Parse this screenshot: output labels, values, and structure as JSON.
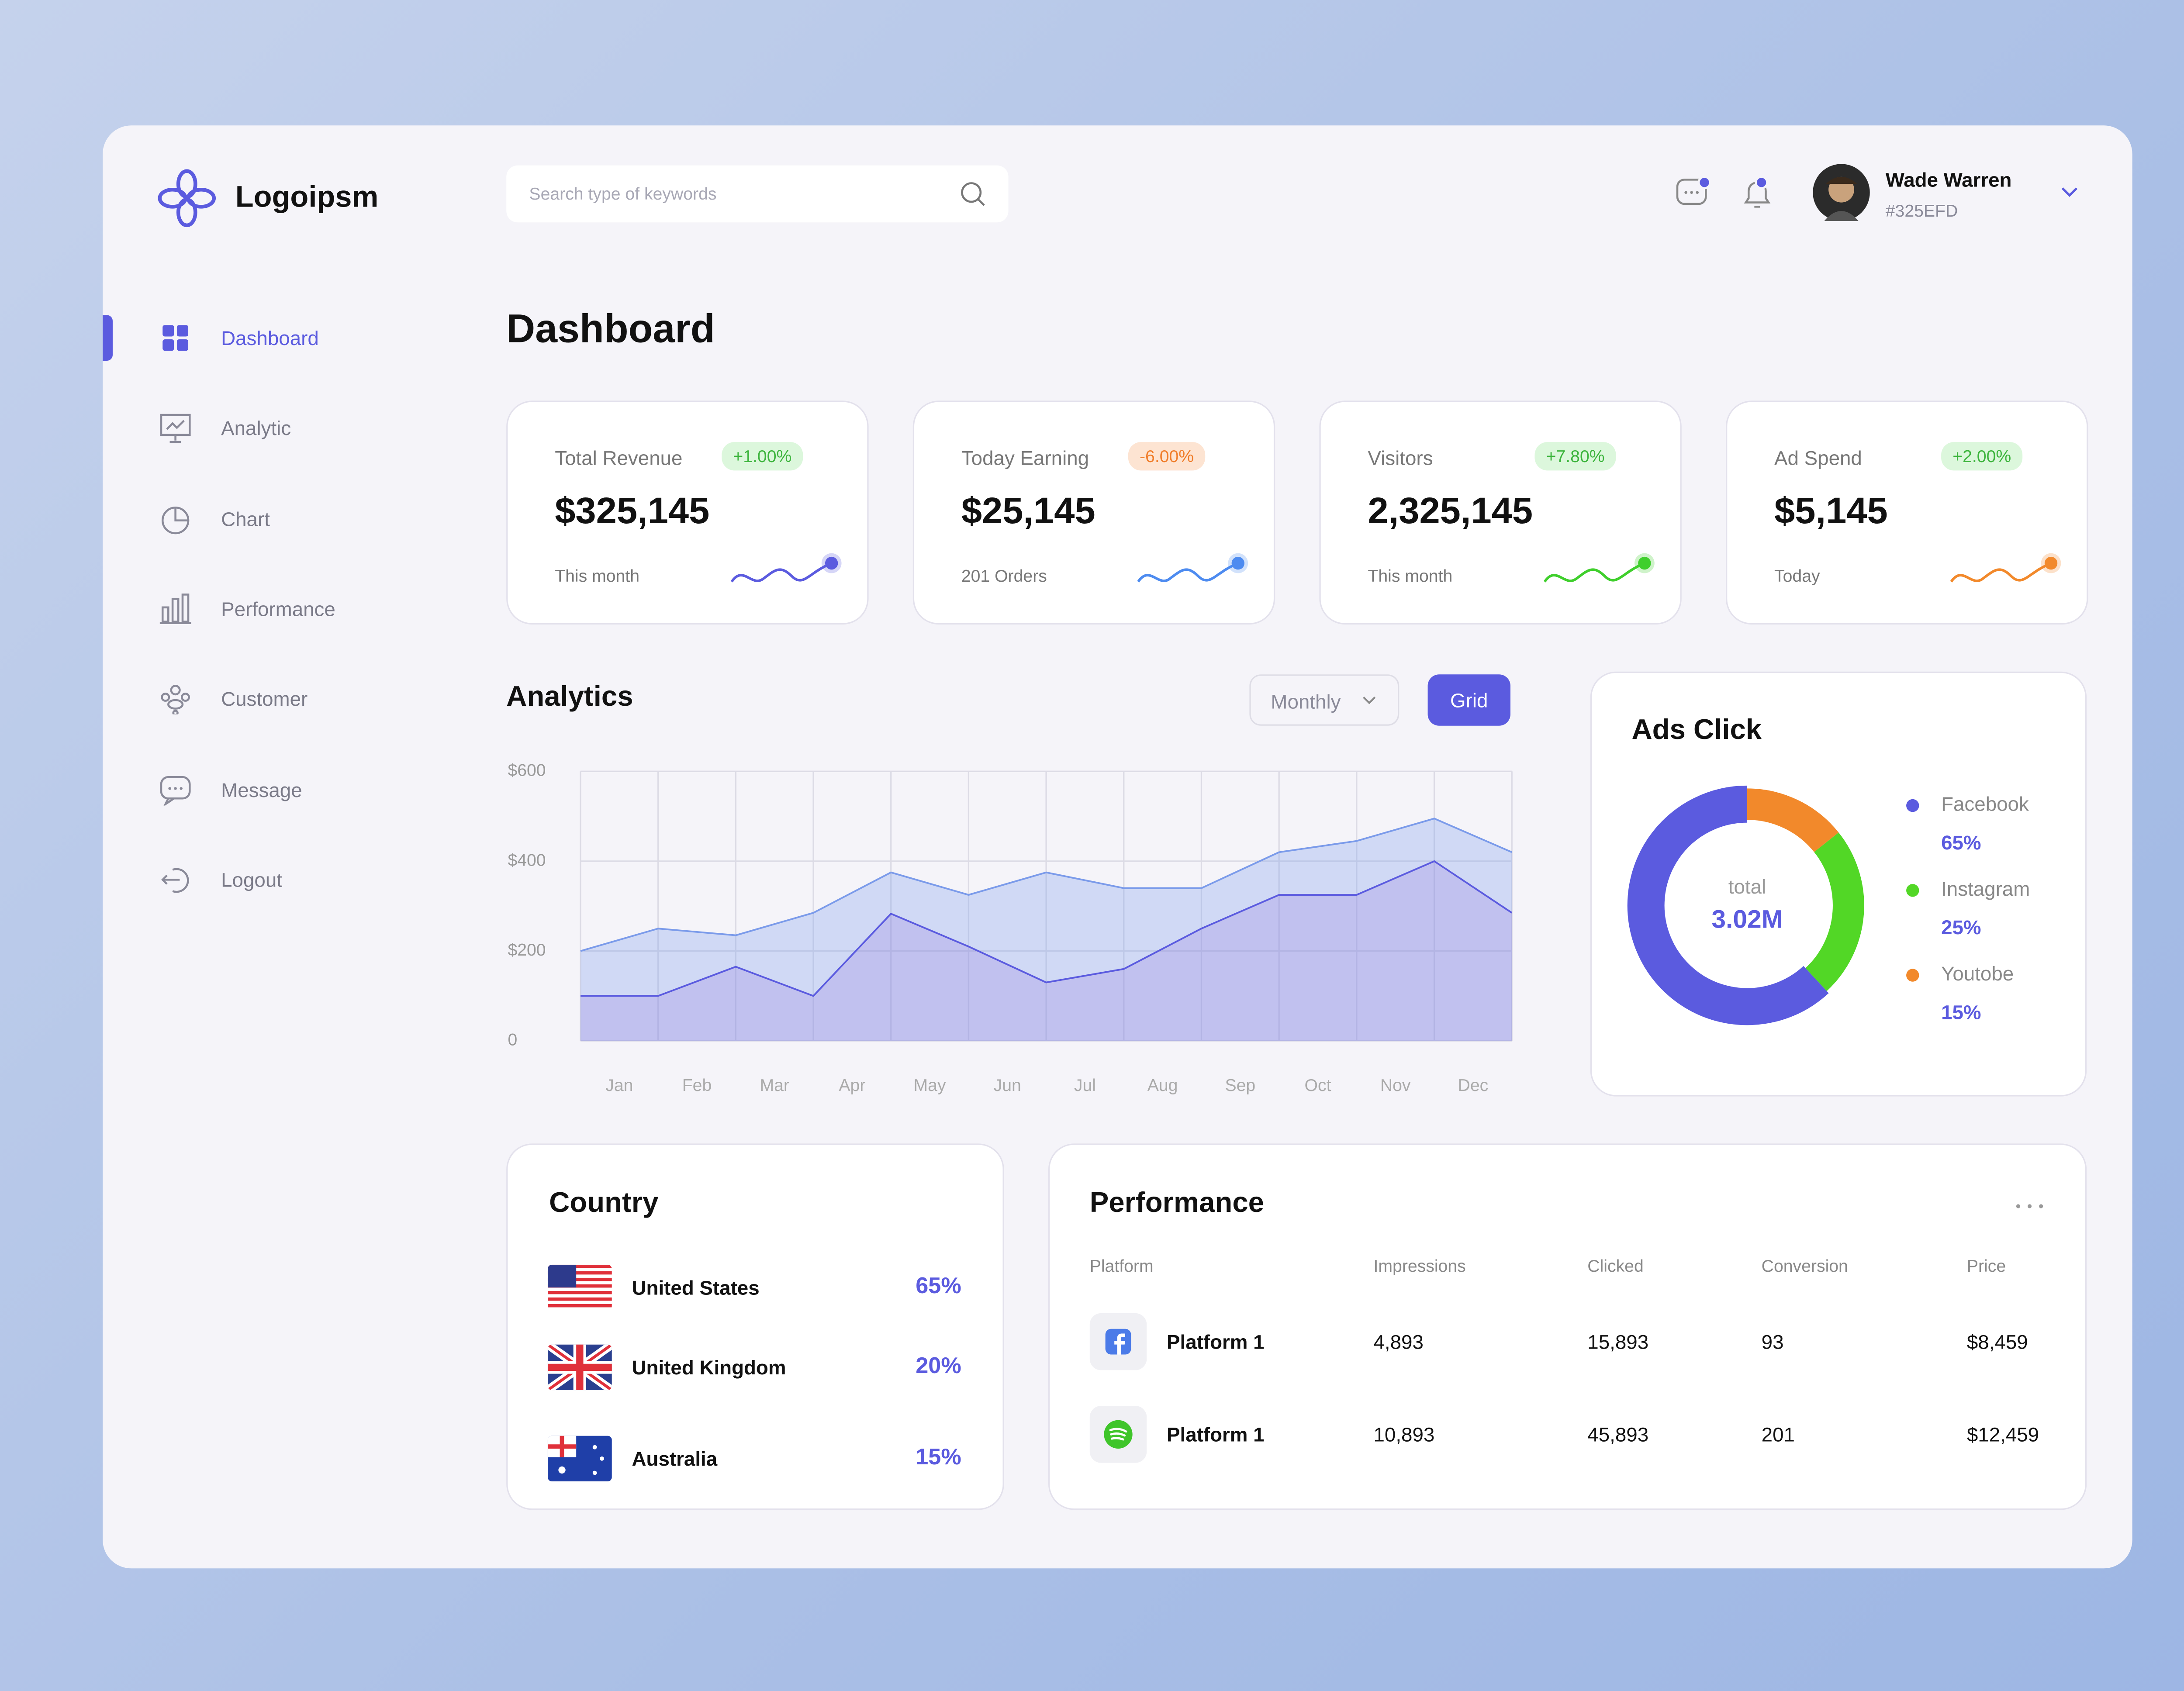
{
  "brand": "Logoipsm",
  "search_placeholder": "Search type of keywords",
  "user": {
    "name": "Wade Warren",
    "id": "#325EFD"
  },
  "nav": [
    "Dashboard",
    "Analytic",
    "Chart",
    "Performance",
    "Customer",
    "Message",
    "Logout"
  ],
  "page_title": "Dashboard",
  "stats": [
    {
      "label": "Total Revenue",
      "badge": "+1.00%",
      "value": "$325,145",
      "note": "This month"
    },
    {
      "label": "Today Earning",
      "badge": "-6.00%",
      "value": "$25,145",
      "note": "201 Orders"
    },
    {
      "label": "Visitors",
      "badge": "+7.80%",
      "value": "2,325,145",
      "note": "This month"
    },
    {
      "label": "Ad Spend",
      "badge": "+2.00%",
      "value": "$5,145",
      "note": "Today"
    }
  ],
  "analytics_controls": {
    "filter": "Monthly",
    "button": "Grid"
  },
  "chart_data": [
    {
      "type": "area",
      "title": "Analytics",
      "categories": [
        "Jan",
        "Feb",
        "Mar",
        "Apr",
        "May",
        "Jun",
        "Jul",
        "Aug",
        "Sep",
        "Oct",
        "Nov",
        "Dec",
        null
      ],
      "series": [
        {
          "color": "#7b9bea",
          "values": [
            200,
            250,
            235,
            285,
            375,
            325,
            375,
            340,
            340,
            420,
            445,
            495,
            420
          ]
        },
        {
          "color": "#5b5bdf",
          "values": [
            100,
            100,
            165,
            100,
            283,
            210,
            130,
            160,
            250,
            325,
            325,
            400,
            285
          ]
        }
      ],
      "ylim": [
        0,
        600
      ],
      "yticks": [
        0,
        {
          "value": 200,
          "label": "$200"
        },
        {
          "value": 400,
          "label": "$400"
        },
        {
          "value": 600,
          "label": "$600"
        }
      ],
      "grid": true
    },
    {
      "type": "donut",
      "title": "Ads Click",
      "center_label": "total",
      "total": "3.02M",
      "categories": [
        "Facebook",
        "Instagram",
        "Youtobe"
      ],
      "values": [
        65,
        25,
        15
      ],
      "value_labels": [
        "65%",
        "25%",
        "15%"
      ],
      "colors": [
        "#5b5bdf",
        "#52d726",
        "#f2892b"
      ]
    }
  ],
  "country": {
    "title": "Country",
    "rows": [
      {
        "name": "United States",
        "share": "65%"
      },
      {
        "name": "United Kingdom",
        "share": "20%"
      },
      {
        "name": "Australia",
        "share": "15%"
      }
    ]
  },
  "performance": {
    "title": "Performance",
    "columns": [
      "Platform",
      "Impressions",
      "Clicked",
      "Conversion",
      "Price"
    ],
    "rows": [
      [
        "Platform 1",
        "4,893",
        "15,893",
        "93",
        "$8,459"
      ],
      [
        "Platform 1",
        "10,893",
        "45,893",
        "201",
        "$12,459"
      ]
    ]
  }
}
